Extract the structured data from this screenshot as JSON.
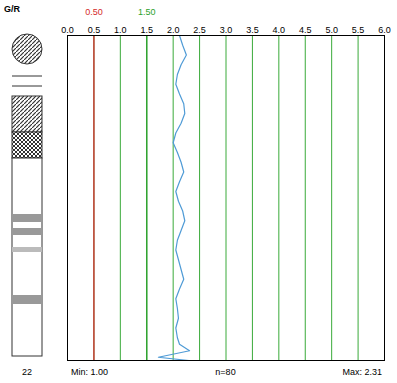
{
  "chart_data": {
    "type": "line",
    "title": "G/R",
    "depth": [
      0,
      3,
      6,
      9,
      12,
      15,
      18,
      21,
      24,
      27,
      30,
      33,
      36,
      39,
      42,
      45,
      48,
      51,
      54,
      57,
      60,
      63,
      66,
      69,
      72,
      75,
      78,
      81,
      84,
      87,
      90,
      93,
      95,
      97,
      99,
      100
    ],
    "values": [
      2.12,
      2.18,
      2.25,
      2.15,
      2.08,
      2.05,
      2.12,
      2.2,
      2.22,
      2.15,
      2.05,
      2.0,
      2.08,
      2.15,
      2.2,
      2.12,
      2.05,
      2.1,
      2.18,
      2.22,
      2.15,
      2.08,
      2.05,
      2.1,
      2.15,
      2.2,
      2.12,
      2.05,
      2.08,
      2.1,
      2.05,
      2.08,
      2.12,
      2.31,
      1.72,
      2.3
    ],
    "color": "#4f9bd6",
    "xlim": [
      0,
      6
    ],
    "xticks": [
      {
        "value": 0,
        "label": "0.0"
      },
      0.5,
      {
        "value": 1,
        "label": "1.0"
      },
      1.5,
      {
        "value": 2,
        "label": "2.0"
      },
      2.5,
      {
        "value": 3,
        "label": "3.0"
      },
      3.5,
      {
        "value": 4,
        "label": "4.0"
      },
      4.5,
      {
        "value": 5,
        "label": "5.0"
      },
      5.5,
      {
        "value": 6,
        "label": "6.0"
      }
    ],
    "ylim": [
      0,
      100
    ],
    "tick_labels": "x",
    "grid": true,
    "reference_lines": [
      {
        "value": 0.5,
        "label": "0.50",
        "color": "#d42a2a"
      },
      {
        "value": 1.5,
        "label": "1.50",
        "color": "#2ca02c"
      }
    ],
    "depth_label": "22",
    "stats": [
      "Min: 1.00",
      "n=80",
      "Max: 2.31"
    ]
  }
}
